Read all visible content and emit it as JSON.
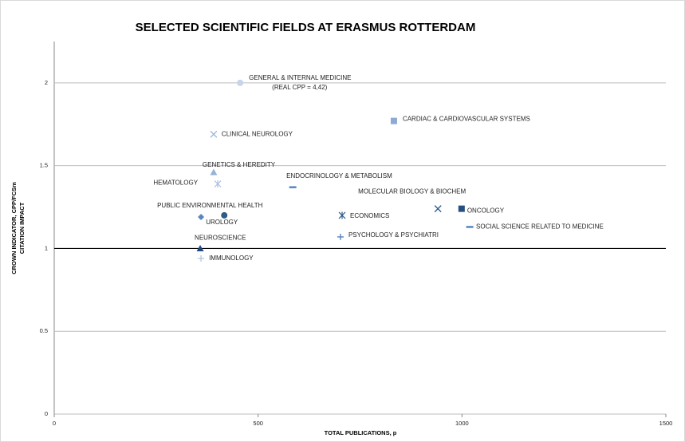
{
  "chart_data": {
    "type": "scatter",
    "title": "SELECTED SCIENTIFIC FIELDS AT ERASMUS ROTTERDAM",
    "x_label": "TOTAL PUBLICATIONS, p",
    "y_label": [
      "CROWN INDICATOR, CPP/FCSm",
      "CITATION IMPACT"
    ],
    "annotation": "(REAL CPP = 4,42)",
    "xlim": [
      0,
      1500
    ],
    "xticks": [
      0,
      500,
      1000,
      1500
    ],
    "ylim": [
      0,
      2.25
    ],
    "yticks": [
      0,
      0.5,
      1,
      1.5,
      2
    ],
    "grid": true,
    "reference_y": 1,
    "series": [
      {
        "name": "GENERAL & INTERNAL MEDICINE",
        "color": "#c6d5ea",
        "marker": "circle",
        "x": [
          456
        ],
        "values": [
          2.0
        ]
      },
      {
        "name": "CARDIAC & CARDIOVASCULAR SYSTEMS",
        "color": "#8eaad3",
        "marker": "square",
        "x": [
          833
        ],
        "values": [
          1.77
        ]
      },
      {
        "name": "CLINICAL NEUROLOGY",
        "color": "#9db7da",
        "marker": "x",
        "x": [
          391
        ],
        "values": [
          1.69
        ]
      },
      {
        "name": "GENETICS & HEREDITY",
        "color": "#95b3d7",
        "marker": "triangle",
        "x": [
          391
        ],
        "values": [
          1.46
        ]
      },
      {
        "name": "HEMATOLOGY",
        "color": "#a9bfdf",
        "marker": "asterisk",
        "x": [
          401
        ],
        "values": [
          1.39
        ]
      },
      {
        "name": "ENDOCRINOLOGY & METABOLISM",
        "color": "#4f81bd",
        "marker": "dash",
        "x": [
          585
        ],
        "values": [
          1.37
        ]
      },
      {
        "name": "MOLECULAR BIOLOGY & BIOCHEM",
        "color": "#2b5a8e",
        "marker": "x",
        "x": [
          941
        ],
        "values": [
          1.24
        ]
      },
      {
        "name": "ONCOLOGY",
        "color": "#254f82",
        "marker": "square",
        "x": [
          999
        ],
        "values": [
          1.24
        ]
      },
      {
        "name": "SOCIAL SCIENCE RELATED TO MEDICINE",
        "color": "#4f81bd",
        "marker": "dash",
        "x": [
          1019
        ],
        "values": [
          1.13
        ]
      },
      {
        "name": "PUBLIC ENVIRONMENTAL  HEALTH",
        "color": "#5a86bf",
        "marker": "diamond",
        "x": [
          360
        ],
        "values": [
          1.19
        ]
      },
      {
        "name": "UROLOGY",
        "color": "#2e5c8a",
        "marker": "circle",
        "x": [
          417
        ],
        "values": [
          1.2
        ]
      },
      {
        "name": "ECONOMICS",
        "color": "#2e5c8a",
        "marker": "asterisk",
        "x": [
          706
        ],
        "values": [
          1.2
        ]
      },
      {
        "name": "PSYCHOLOGY & PSYCHIATRI",
        "color": "#4f81bd",
        "marker": "plus",
        "x": [
          702
        ],
        "values": [
          1.07
        ]
      },
      {
        "name": "NEUROSCIENCE",
        "color": "#1f497d",
        "marker": "triangle",
        "x": [
          358
        ],
        "values": [
          1.0
        ]
      },
      {
        "name": "IMMUNOLOGY",
        "color": "#b0c4de",
        "marker": "plus",
        "x": [
          360
        ],
        "values": [
          0.94
        ]
      }
    ]
  }
}
